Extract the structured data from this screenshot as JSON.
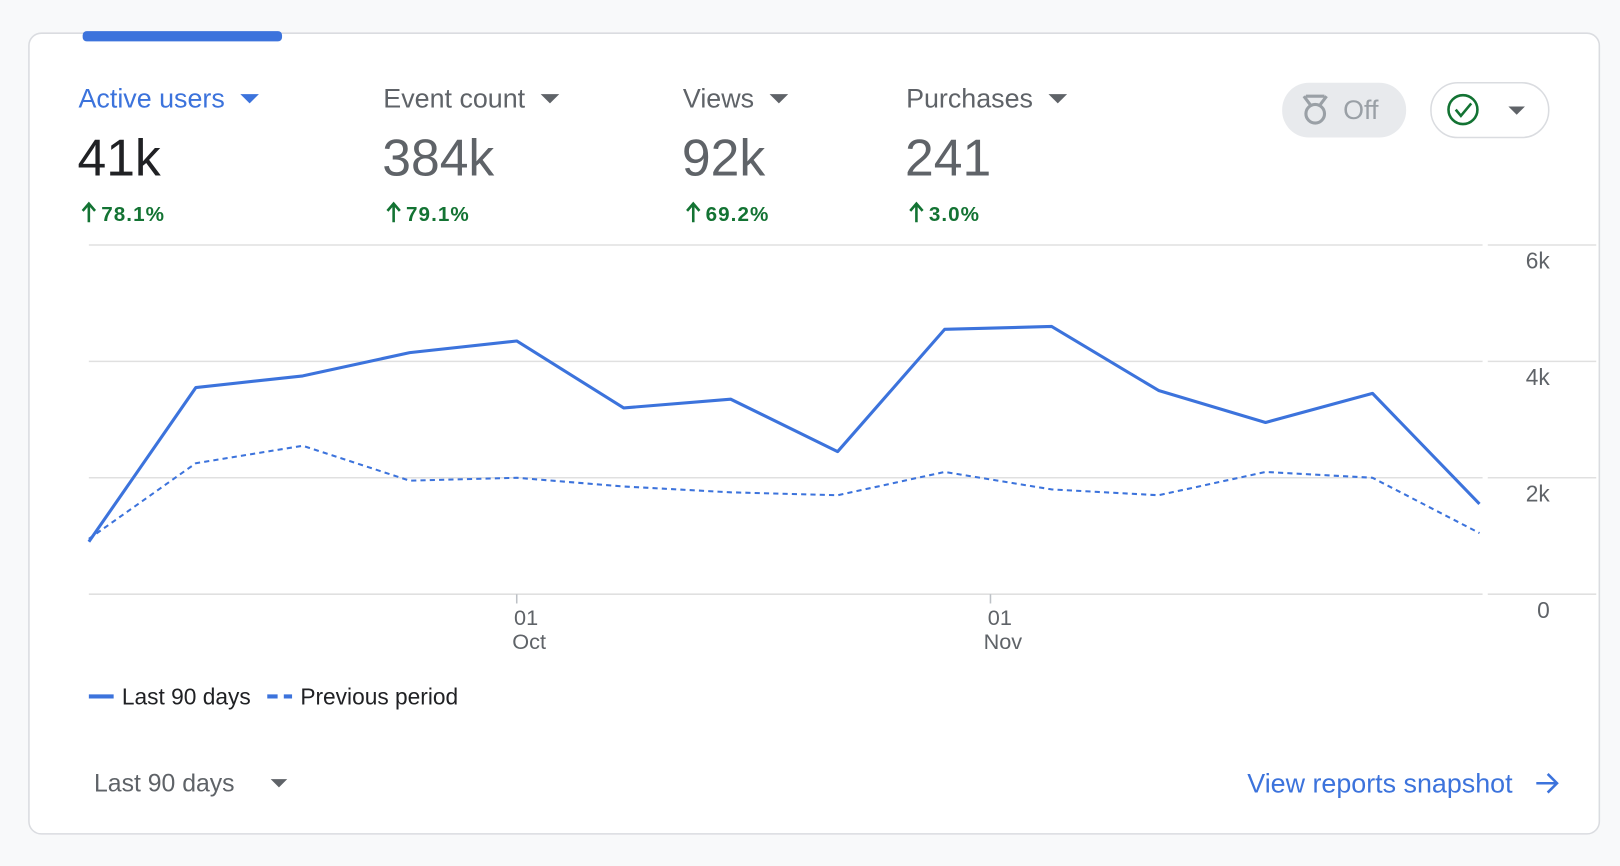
{
  "header": {
    "metrics": [
      {
        "name": "Active users",
        "value": "41k",
        "change": "78.1%"
      },
      {
        "name": "Event count",
        "value": "384k",
        "change": "79.1%"
      },
      {
        "name": "Views",
        "value": "92k",
        "change": "69.2%"
      },
      {
        "name": "Purchases",
        "value": "241",
        "change": "3.0%"
      }
    ],
    "toggle": "Off"
  },
  "chart_data": {
    "type": "line",
    "x": [
      0,
      7,
      14,
      21,
      28,
      35,
      42,
      49,
      56,
      63,
      70,
      77,
      84,
      91
    ],
    "xlim": [
      0,
      91
    ],
    "xticks": [
      {
        "value": 28,
        "label": "01 Oct"
      },
      {
        "value": 59,
        "label": "01 Nov"
      }
    ],
    "ylim": [
      0,
      6000
    ],
    "yticks": [
      0,
      {
        "value": 2000,
        "label": "2k"
      },
      {
        "value": 4000,
        "label": "4k"
      },
      {
        "value": 6000,
        "label": "6k"
      }
    ],
    "grid": true,
    "series": [
      {
        "name": "Last 90 days",
        "color": "#3c73dc",
        "dash": false,
        "values": [
          900,
          3550,
          3750,
          4150,
          4350,
          3200,
          3350,
          2450,
          4550,
          4600,
          3500,
          2950,
          3450,
          1550
        ]
      },
      {
        "name": "Previous period",
        "color": "#3c73dc",
        "dash": true,
        "values": [
          950,
          2250,
          2550,
          1950,
          2000,
          1850,
          1750,
          1700,
          2100,
          1800,
          1700,
          2100,
          2000,
          1050
        ]
      }
    ]
  },
  "footer": {
    "range": "Last 90 days",
    "link": "View reports snapshot"
  }
}
